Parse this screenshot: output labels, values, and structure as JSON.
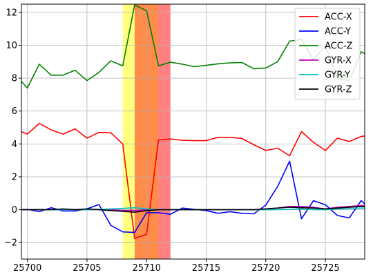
{
  "chart_data": {
    "type": "line",
    "x_range": [
      25699.5,
      25728.3
    ],
    "ylim": [
      -3.0,
      12.5
    ],
    "xticks": [
      25700,
      25705,
      25710,
      25715,
      25720,
      25725
    ],
    "yticks": [
      -2,
      0,
      2,
      4,
      6,
      8,
      10,
      12
    ],
    "xtick_labels": [
      "25700",
      "25705",
      "25710",
      "25715",
      "25720",
      "25725"
    ],
    "ytick_labels": [
      "−2",
      "0",
      "2",
      "4",
      "6",
      "8",
      "10",
      "12"
    ],
    "grid": true,
    "legend_position": "top-right",
    "highlight_bands": [
      {
        "x0": 25708.0,
        "x1": 25709.0,
        "color": "#ffff80"
      },
      {
        "x0": 25709.0,
        "x1": 25711.0,
        "color": "#ff8c4a"
      },
      {
        "x0": 25711.0,
        "x1": 25712.0,
        "color": "#ff8080"
      }
    ],
    "x": [
      25699.5,
      25700,
      25701,
      25702,
      25703,
      25704,
      25705,
      25706,
      25707,
      25708,
      25709,
      25710,
      25711,
      25712,
      25713,
      25714,
      25715,
      25716,
      25717,
      25718,
      25719,
      25720,
      25721,
      25722,
      25723,
      25724,
      25725,
      25726,
      25727,
      25728,
      25728.3
    ],
    "series": [
      {
        "name": "ACC-X",
        "color": "#ff0000",
        "values": [
          4.75,
          4.6,
          5.25,
          4.85,
          4.6,
          4.92,
          4.35,
          4.7,
          4.68,
          4.0,
          -1.75,
          -1.5,
          4.25,
          4.3,
          4.22,
          4.2,
          4.2,
          4.4,
          4.4,
          4.33,
          3.95,
          3.6,
          3.74,
          3.28,
          4.75,
          4.1,
          3.6,
          4.35,
          4.15,
          4.45,
          4.48
        ]
      },
      {
        "name": "ACC-Y",
        "color": "#0000ff",
        "values": [
          0.0,
          0.02,
          -0.12,
          0.12,
          -0.08,
          -0.08,
          0.05,
          0.32,
          -0.95,
          -1.35,
          -1.38,
          -0.18,
          -0.18,
          -0.28,
          0.1,
          0.02,
          -0.05,
          -0.22,
          -0.12,
          -0.22,
          -0.25,
          0.28,
          1.42,
          2.95,
          -0.55,
          0.55,
          0.3,
          -0.35,
          -0.5,
          0.55,
          0.35
        ]
      },
      {
        "name": "ACC-Z",
        "color": "#008000",
        "values": [
          7.8,
          7.4,
          8.85,
          8.18,
          8.18,
          8.48,
          7.85,
          8.35,
          9.05,
          8.75,
          12.45,
          12.1,
          8.75,
          8.97,
          8.85,
          8.7,
          8.78,
          8.87,
          8.93,
          8.95,
          8.57,
          8.62,
          9.0,
          10.25,
          10.35,
          9.1,
          10.0,
          8.0,
          7.85,
          9.6,
          9.5
        ]
      },
      {
        "name": "GYR-X",
        "color": "#c000c0",
        "values": [
          0.0,
          0.0,
          0.01,
          0.0,
          0.0,
          0.0,
          0.0,
          0.01,
          0.0,
          -0.05,
          -0.05,
          0.0,
          0.0,
          0.0,
          0.0,
          0.0,
          0.0,
          0.0,
          0.0,
          0.0,
          0.0,
          0.05,
          0.1,
          0.2,
          0.2,
          0.15,
          0.05,
          0.15,
          0.2,
          0.25,
          0.25
        ]
      },
      {
        "name": "GYR-Y",
        "color": "#00bfbf",
        "values": [
          0.0,
          0.0,
          0.0,
          0.0,
          0.0,
          0.0,
          0.0,
          0.02,
          0.05,
          0.08,
          0.12,
          0.05,
          0.0,
          0.0,
          0.0,
          0.0,
          0.0,
          0.0,
          0.0,
          0.0,
          0.0,
          0.0,
          0.0,
          0.02,
          0.05,
          0.0,
          0.0,
          0.05,
          0.08,
          0.1,
          0.1
        ]
      },
      {
        "name": "GYR-Z",
        "color": "#000000",
        "values": [
          0.0,
          0.0,
          0.0,
          0.0,
          0.05,
          0.0,
          0.05,
          0.0,
          -0.05,
          -0.1,
          -0.15,
          -0.05,
          0.0,
          0.0,
          0.0,
          0.0,
          0.0,
          0.0,
          0.0,
          0.0,
          0.0,
          0.05,
          0.1,
          0.15,
          0.12,
          0.1,
          0.05,
          0.1,
          0.15,
          0.2,
          0.2
        ]
      }
    ]
  }
}
